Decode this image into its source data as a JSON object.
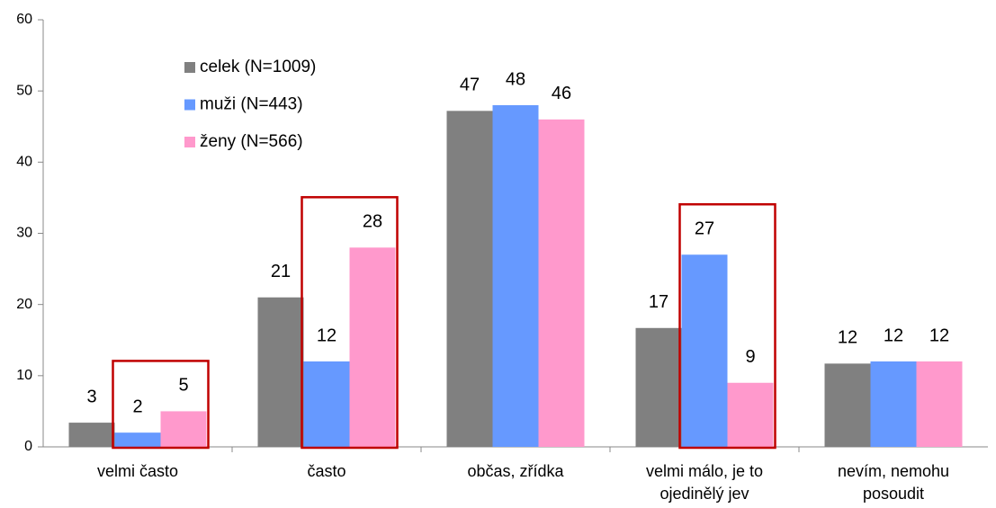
{
  "chart_data": {
    "type": "bar",
    "categories": [
      "velmi často",
      "často",
      "občas, zřídka",
      "velmi málo, je to ojedinělý jev",
      "nevím, nemohu posoudit"
    ],
    "series": [
      {
        "name": "celek (N=1009)",
        "color": "#808080",
        "values": [
          3.4,
          21,
          47.2,
          16.7,
          11.7
        ],
        "value_labels": [
          "3",
          "21",
          "47",
          "17",
          "12"
        ]
      },
      {
        "name": "muži (N=443)",
        "color": "#6699ff",
        "values": [
          2,
          12,
          48,
          27,
          12
        ]
      },
      {
        "name": "ženy (N=566)",
        "color": "#ff99cc",
        "values": [
          5,
          28,
          46,
          9,
          12
        ]
      }
    ],
    "ylim": [
      0,
      60
    ],
    "yticks": [
      0,
      10,
      20,
      30,
      40,
      50,
      60
    ],
    "grid": false
  }
}
